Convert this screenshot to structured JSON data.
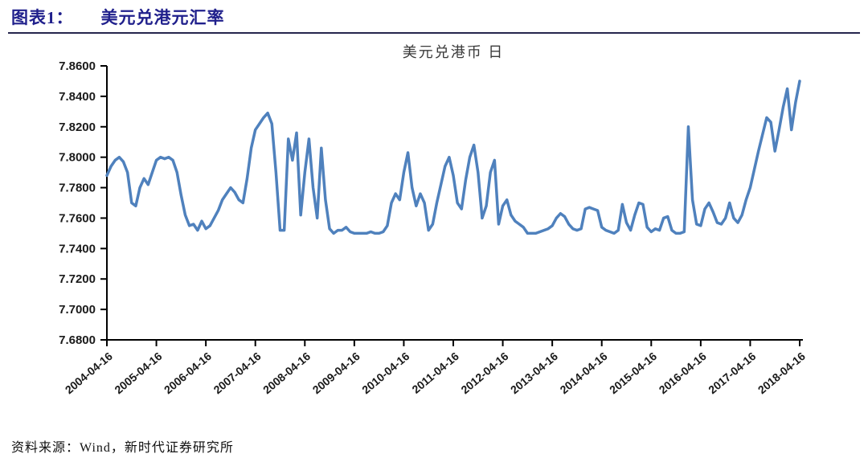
{
  "header": {
    "label": "图表1：",
    "title": "美元兑港元汇率"
  },
  "footer": {
    "source": "资料来源：Wind，新时代证券研究所"
  },
  "colors": {
    "accent_navy": "#20208C",
    "line_blue": "#4F81BD",
    "axis_black": "#000000"
  },
  "chart_data": {
    "type": "line",
    "title": "美元兑港币 日",
    "series_name": "USD/HKD",
    "x_start": "2004-04",
    "x_end": "2018-04",
    "x_freq": "monthly",
    "categories": [
      "2004-04-16",
      "2005-04-16",
      "2006-04-16",
      "2007-04-16",
      "2008-04-16",
      "2009-04-16",
      "2010-04-16",
      "2011-04-16",
      "2012-04-16",
      "2013-04-16",
      "2014-04-16",
      "2015-04-16",
      "2016-04-16",
      "2017-04-16",
      "2018-04-16"
    ],
    "yticks": [
      "7.8600",
      "7.8400",
      "7.8200",
      "7.8000",
      "7.7800",
      "7.7600",
      "7.7400",
      "7.7200",
      "7.7000",
      "7.6800"
    ],
    "ylim": [
      7.68,
      7.86
    ],
    "grid": false,
    "legend": "none",
    "line_color": "#4F81BD",
    "values": [
      7.788,
      7.794,
      7.798,
      7.8,
      7.797,
      7.79,
      7.77,
      7.768,
      7.78,
      7.786,
      7.782,
      7.79,
      7.798,
      7.8,
      7.799,
      7.8,
      7.798,
      7.79,
      7.775,
      7.762,
      7.755,
      7.756,
      7.752,
      7.758,
      7.753,
      7.755,
      7.76,
      7.765,
      7.772,
      7.776,
      7.78,
      7.777,
      7.772,
      7.77,
      7.786,
      7.806,
      7.818,
      7.822,
      7.826,
      7.829,
      7.822,
      7.79,
      7.752,
      7.752,
      7.812,
      7.798,
      7.816,
      7.762,
      7.79,
      7.812,
      7.78,
      7.76,
      7.806,
      7.772,
      7.753,
      7.75,
      7.752,
      7.752,
      7.754,
      7.751,
      7.75,
      7.75,
      7.75,
      7.75,
      7.751,
      7.75,
      7.75,
      7.751,
      7.755,
      7.77,
      7.776,
      7.772,
      7.79,
      7.803,
      7.78,
      7.768,
      7.776,
      7.77,
      7.752,
      7.756,
      7.77,
      7.782,
      7.794,
      7.8,
      7.788,
      7.77,
      7.766,
      7.785,
      7.8,
      7.808,
      7.79,
      7.76,
      7.768,
      7.79,
      7.798,
      7.756,
      7.768,
      7.772,
      7.762,
      7.758,
      7.756,
      7.754,
      7.75,
      7.75,
      7.75,
      7.751,
      7.752,
      7.753,
      7.755,
      7.76,
      7.763,
      7.761,
      7.756,
      7.753,
      7.752,
      7.753,
      7.766,
      7.767,
      7.766,
      7.765,
      7.754,
      7.752,
      7.751,
      7.75,
      7.752,
      7.769,
      7.757,
      7.752,
      7.762,
      7.77,
      7.769,
      7.754,
      7.751,
      7.753,
      7.752,
      7.76,
      7.761,
      7.752,
      7.75,
      7.75,
      7.751,
      7.82,
      7.772,
      7.756,
      7.755,
      7.766,
      7.77,
      7.764,
      7.757,
      7.756,
      7.76,
      7.77,
      7.76,
      7.757,
      7.762,
      7.772,
      7.78,
      7.792,
      7.804,
      7.815,
      7.826,
      7.823,
      7.804,
      7.818,
      7.833,
      7.845,
      7.818,
      7.836,
      7.85
    ]
  }
}
